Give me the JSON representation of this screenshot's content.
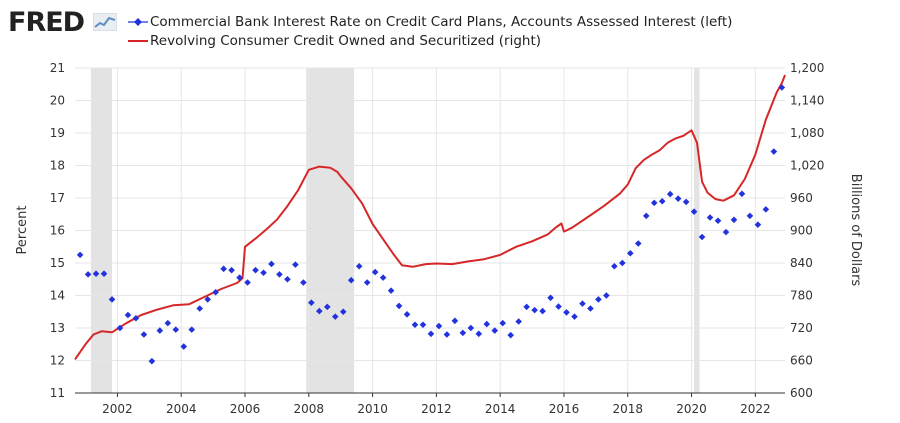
{
  "brand": {
    "logo_text": "FRED",
    "logo_icon": "fred-chart-icon"
  },
  "legend": [
    {
      "label": "Commercial Bank Interest Rate on Credit Card Plans, Accounts Assessed Interest (left)",
      "color": "#2233dd",
      "marker": "diamond"
    },
    {
      "label": "Revolving Consumer Credit Owned and Securitized (right)",
      "color": "#d62728",
      "marker": "line"
    }
  ],
  "chart_data": {
    "type": "line",
    "x_range": [
      2000.67,
      2022.93
    ],
    "x_ticks": [
      {
        "value": 2002,
        "label": "2002"
      },
      {
        "value": 2004,
        "label": "2004"
      },
      {
        "value": 2006,
        "label": "2006"
      },
      {
        "value": 2008,
        "label": "2008"
      },
      {
        "value": 2010,
        "label": "2010"
      },
      {
        "value": 2012,
        "label": "2012"
      },
      {
        "value": 2014,
        "label": "2014"
      },
      {
        "value": 2016,
        "label": "2016"
      },
      {
        "value": 2018,
        "label": "2018"
      },
      {
        "value": 2020,
        "label": "2020"
      },
      {
        "value": 2022,
        "label": "2022"
      }
    ],
    "y_left": {
      "label": "Percent",
      "range": [
        11,
        21
      ],
      "ticks": [
        "11",
        "12",
        "13",
        "14",
        "15",
        "16",
        "17",
        "18",
        "19",
        "20",
        "21"
      ]
    },
    "y_right": {
      "label": "Billions of Dollars",
      "range": [
        600,
        1200
      ],
      "ticks": [
        "600",
        "660",
        "720",
        "780",
        "840",
        "900",
        "960",
        "1,020",
        "1,080",
        "1,140",
        "1,200"
      ]
    },
    "grid": true,
    "legend_position": "top-left",
    "recessions": [
      [
        2001.17,
        2001.83
      ],
      [
        2007.92,
        2009.42
      ],
      [
        2020.08,
        2020.25
      ]
    ],
    "series": [
      {
        "name": "Commercial Bank Interest Rate on Credit Card Plans, Accounts Assessed Interest (left)",
        "axis": "left",
        "style": "markers",
        "color": "#2233dd",
        "points": [
          [
            2000.83,
            15.25
          ],
          [
            2001.08,
            14.65
          ],
          [
            2001.33,
            14.67
          ],
          [
            2001.58,
            14.67
          ],
          [
            2001.83,
            13.88
          ],
          [
            2002.08,
            13.0
          ],
          [
            2002.33,
            13.4
          ],
          [
            2002.58,
            13.3
          ],
          [
            2002.83,
            12.8
          ],
          [
            2003.08,
            11.98
          ],
          [
            2003.33,
            12.92
          ],
          [
            2003.58,
            13.15
          ],
          [
            2003.83,
            12.95
          ],
          [
            2004.08,
            12.43
          ],
          [
            2004.33,
            12.95
          ],
          [
            2004.58,
            13.6
          ],
          [
            2004.83,
            13.88
          ],
          [
            2005.08,
            14.1
          ],
          [
            2005.33,
            14.82
          ],
          [
            2005.58,
            14.78
          ],
          [
            2005.83,
            14.55
          ],
          [
            2006.08,
            14.4
          ],
          [
            2006.33,
            14.78
          ],
          [
            2006.58,
            14.7
          ],
          [
            2006.83,
            14.97
          ],
          [
            2007.08,
            14.65
          ],
          [
            2007.33,
            14.5
          ],
          [
            2007.58,
            14.95
          ],
          [
            2007.83,
            14.4
          ],
          [
            2008.08,
            13.78
          ],
          [
            2008.33,
            13.52
          ],
          [
            2008.58,
            13.65
          ],
          [
            2008.83,
            13.35
          ],
          [
            2009.08,
            13.5
          ],
          [
            2009.33,
            14.47
          ],
          [
            2009.58,
            14.9
          ],
          [
            2009.83,
            14.4
          ],
          [
            2010.08,
            14.72
          ],
          [
            2010.33,
            14.55
          ],
          [
            2010.58,
            14.15
          ],
          [
            2010.83,
            13.68
          ],
          [
            2011.08,
            13.42
          ],
          [
            2011.33,
            13.1
          ],
          [
            2011.58,
            13.1
          ],
          [
            2011.83,
            12.82
          ],
          [
            2012.08,
            13.06
          ],
          [
            2012.33,
            12.8
          ],
          [
            2012.58,
            13.22
          ],
          [
            2012.83,
            12.85
          ],
          [
            2013.08,
            13.0
          ],
          [
            2013.33,
            12.82
          ],
          [
            2013.58,
            13.12
          ],
          [
            2013.83,
            12.92
          ],
          [
            2014.08,
            13.15
          ],
          [
            2014.33,
            12.78
          ],
          [
            2014.58,
            13.2
          ],
          [
            2014.83,
            13.65
          ],
          [
            2015.08,
            13.55
          ],
          [
            2015.33,
            13.52
          ],
          [
            2015.58,
            13.93
          ],
          [
            2015.83,
            13.66
          ],
          [
            2016.08,
            13.48
          ],
          [
            2016.33,
            13.35
          ],
          [
            2016.58,
            13.75
          ],
          [
            2016.83,
            13.6
          ],
          [
            2017.08,
            13.88
          ],
          [
            2017.33,
            14.0
          ],
          [
            2017.58,
            14.9
          ],
          [
            2017.83,
            15.0
          ],
          [
            2018.08,
            15.3
          ],
          [
            2018.33,
            15.6
          ],
          [
            2018.58,
            16.45
          ],
          [
            2018.83,
            16.85
          ],
          [
            2019.08,
            16.9
          ],
          [
            2019.33,
            17.12
          ],
          [
            2019.58,
            16.98
          ],
          [
            2019.83,
            16.88
          ],
          [
            2020.08,
            16.58
          ],
          [
            2020.33,
            15.8
          ],
          [
            2020.58,
            16.4
          ],
          [
            2020.83,
            16.3
          ],
          [
            2021.08,
            15.95
          ],
          [
            2021.33,
            16.33
          ],
          [
            2021.58,
            17.13
          ],
          [
            2021.83,
            16.45
          ],
          [
            2022.08,
            16.18
          ],
          [
            2022.33,
            16.65
          ],
          [
            2022.58,
            18.43
          ],
          [
            2022.83,
            20.4
          ]
        ]
      },
      {
        "name": "Revolving Consumer Credit Owned and Securitized (right)",
        "axis": "right",
        "style": "line",
        "color": "#d62728",
        "points": [
          [
            2000.67,
            662
          ],
          [
            2001.0,
            690
          ],
          [
            2001.25,
            708
          ],
          [
            2001.5,
            714
          ],
          [
            2001.83,
            712
          ],
          [
            2002.25,
            728
          ],
          [
            2002.75,
            744
          ],
          [
            2003.25,
            754
          ],
          [
            2003.75,
            762
          ],
          [
            2004.25,
            764
          ],
          [
            2004.75,
            778
          ],
          [
            2005.25,
            792
          ],
          [
            2005.75,
            803
          ],
          [
            2005.92,
            812
          ],
          [
            2006.0,
            870
          ],
          [
            2006.33,
            885
          ],
          [
            2006.67,
            902
          ],
          [
            2007.0,
            920
          ],
          [
            2007.33,
            945
          ],
          [
            2007.67,
            975
          ],
          [
            2008.0,
            1012
          ],
          [
            2008.33,
            1018
          ],
          [
            2008.67,
            1016
          ],
          [
            2008.9,
            1008
          ],
          [
            2009.0,
            1000
          ],
          [
            2009.33,
            978
          ],
          [
            2009.67,
            950
          ],
          [
            2010.0,
            912
          ],
          [
            2010.33,
            884
          ],
          [
            2010.67,
            855
          ],
          [
            2010.92,
            836
          ],
          [
            2011.25,
            833
          ],
          [
            2011.67,
            838
          ],
          [
            2012.0,
            839
          ],
          [
            2012.5,
            838
          ],
          [
            2013.0,
            843
          ],
          [
            2013.5,
            847
          ],
          [
            2014.0,
            855
          ],
          [
            2014.5,
            870
          ],
          [
            2015.0,
            880
          ],
          [
            2015.5,
            893
          ],
          [
            2015.75,
            906
          ],
          [
            2015.92,
            913
          ],
          [
            2016.0,
            898
          ],
          [
            2016.25,
            905
          ],
          [
            2016.75,
            925
          ],
          [
            2017.25,
            945
          ],
          [
            2017.75,
            968
          ],
          [
            2018.0,
            985
          ],
          [
            2018.25,
            1015
          ],
          [
            2018.5,
            1030
          ],
          [
            2018.75,
            1040
          ],
          [
            2019.0,
            1048
          ],
          [
            2019.25,
            1062
          ],
          [
            2019.5,
            1070
          ],
          [
            2019.75,
            1075
          ],
          [
            2020.0,
            1085
          ],
          [
            2020.17,
            1062
          ],
          [
            2020.33,
            990
          ],
          [
            2020.5,
            970
          ],
          [
            2020.75,
            958
          ],
          [
            2021.0,
            955
          ],
          [
            2021.33,
            965
          ],
          [
            2021.67,
            995
          ],
          [
            2022.0,
            1040
          ],
          [
            2022.33,
            1105
          ],
          [
            2022.67,
            1155
          ],
          [
            2022.83,
            1172
          ],
          [
            2022.93,
            1187
          ]
        ]
      }
    ]
  }
}
